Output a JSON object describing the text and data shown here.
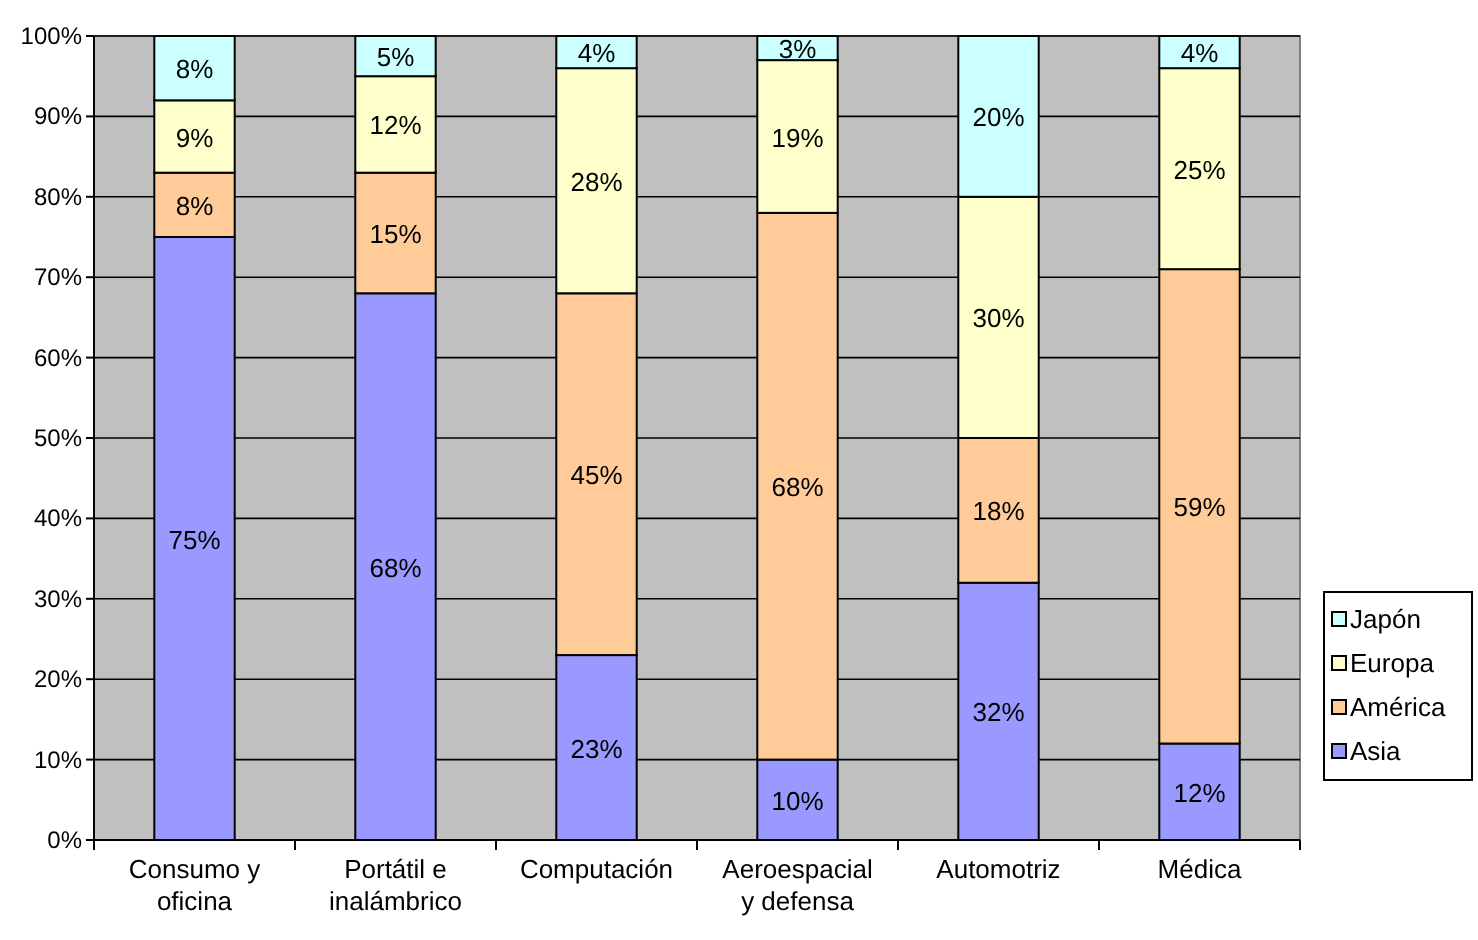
{
  "chart_data": {
    "type": "bar",
    "stacked": true,
    "categories": [
      "Consumo y oficina",
      "Portátil e inalámbrico",
      "Computación",
      "Aeroespacial y defensa",
      "Automotriz",
      "Médica"
    ],
    "series": [
      {
        "name": "Asia",
        "color": "#9999ff",
        "values": [
          75,
          68,
          23,
          10,
          32,
          12
        ],
        "value_labels": [
          "75%",
          "68%",
          "23%",
          "10%",
          "32%",
          "12%"
        ]
      },
      {
        "name": "América",
        "color": "#ffcc99",
        "values": [
          8,
          15,
          45,
          68,
          18,
          59
        ],
        "value_labels": [
          "8%",
          "15%",
          "45%",
          "68%",
          "18%",
          "59%"
        ]
      },
      {
        "name": "Europa",
        "color": "#ffffcc",
        "values": [
          9,
          12,
          28,
          19,
          30,
          25
        ],
        "value_labels": [
          "9%",
          "12%",
          "28%",
          "19%",
          "30%",
          "25%"
        ]
      },
      {
        "name": "Japón",
        "color": "#ccffff",
        "values": [
          8,
          5,
          4,
          3,
          20,
          4
        ],
        "value_labels": [
          "8%",
          "5%",
          "4%",
          "3%",
          "20%",
          "4%"
        ]
      }
    ],
    "ylim": [
      0,
      100
    ],
    "yticks": [
      {
        "value": 0,
        "label": "0%"
      },
      {
        "value": 10,
        "label": "10%"
      },
      {
        "value": 20,
        "label": "20%"
      },
      {
        "value": 30,
        "label": "30%"
      },
      {
        "value": 40,
        "label": "40%"
      },
      {
        "value": 50,
        "label": "50%"
      },
      {
        "value": 60,
        "label": "60%"
      },
      {
        "value": 70,
        "label": "70%"
      },
      {
        "value": 80,
        "label": "80%"
      },
      {
        "value": 90,
        "label": "90%"
      },
      {
        "value": 100,
        "label": "100%"
      }
    ],
    "grid": "y",
    "legend": "right"
  }
}
